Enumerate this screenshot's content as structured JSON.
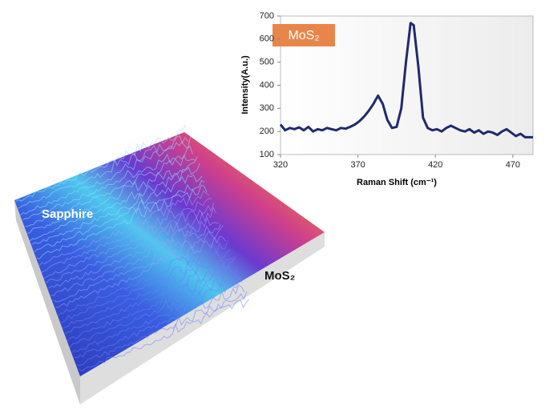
{
  "chart_data": {
    "type": "line",
    "title": "MoS₂",
    "x_label": "Raman Shift (cm⁻¹)",
    "y_label": "Intensity(A.u.)",
    "annotations": [
      "Sapphire",
      "MoS₂"
    ],
    "x": [
      320,
      323,
      326,
      329,
      332,
      335,
      338,
      341,
      344,
      347,
      350,
      353,
      356,
      359,
      362,
      365,
      368,
      371,
      374,
      377,
      380,
      383,
      386,
      389,
      392,
      395,
      398,
      401,
      404,
      406,
      409,
      412,
      415,
      418,
      421,
      424,
      427,
      430,
      433,
      436,
      439,
      442,
      445,
      448,
      451,
      454,
      457,
      460,
      463,
      466,
      469,
      472,
      475,
      478,
      481,
      483
    ],
    "series": [
      {
        "color": "#1f2a6e",
        "values": [
          230,
          205,
          215,
          210,
          218,
          205,
          220,
          200,
          210,
          205,
          215,
          210,
          205,
          215,
          212,
          220,
          230,
          245,
          265,
          290,
          320,
          355,
          320,
          250,
          215,
          220,
          300,
          500,
          670,
          660,
          480,
          260,
          215,
          205,
          210,
          200,
          215,
          225,
          215,
          205,
          200,
          210,
          195,
          205,
          190,
          200,
          195,
          185,
          200,
          210,
          195,
          180,
          190,
          175,
          175,
          175
        ]
      }
    ],
    "xlim": [
      320,
      483
    ],
    "xticks": [
      320,
      370,
      420,
      470
    ],
    "ylim": [
      100,
      700
    ],
    "yticks": [
      100,
      200,
      300,
      400,
      500,
      600,
      700
    ]
  }
}
